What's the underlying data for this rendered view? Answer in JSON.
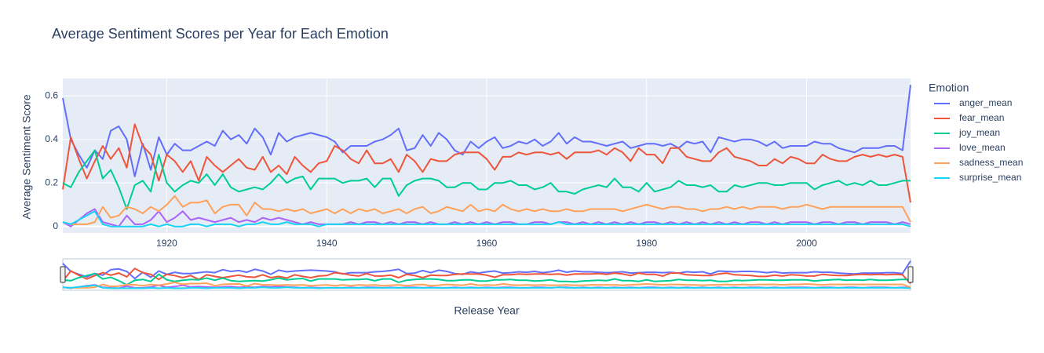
{
  "chart_data": {
    "type": "line",
    "title": "Average Sentiment Scores per Year for Each Emotion",
    "x_label": "Release Year",
    "y_label": "Average Sentiment Score",
    "legend_title": "Emotion",
    "x": [
      1907,
      1908,
      1909,
      1910,
      1911,
      1912,
      1913,
      1914,
      1915,
      1916,
      1917,
      1918,
      1919,
      1920,
      1921,
      1922,
      1923,
      1924,
      1925,
      1926,
      1927,
      1928,
      1929,
      1930,
      1931,
      1932,
      1933,
      1934,
      1935,
      1936,
      1937,
      1938,
      1939,
      1940,
      1941,
      1942,
      1943,
      1944,
      1945,
      1946,
      1947,
      1948,
      1949,
      1950,
      1951,
      1952,
      1953,
      1954,
      1955,
      1956,
      1957,
      1958,
      1959,
      1960,
      1961,
      1962,
      1963,
      1964,
      1965,
      1966,
      1967,
      1968,
      1969,
      1970,
      1971,
      1972,
      1973,
      1974,
      1975,
      1976,
      1977,
      1978,
      1979,
      1980,
      1981,
      1982,
      1983,
      1984,
      1985,
      1986,
      1987,
      1988,
      1989,
      1990,
      1991,
      1992,
      1993,
      1994,
      1995,
      1996,
      1997,
      1998,
      1999,
      2000,
      2001,
      2002,
      2003,
      2004,
      2005,
      2006,
      2007,
      2008,
      2009,
      2010,
      2011,
      2012,
      2013
    ],
    "series": [
      {
        "name": "anger_mean",
        "color": "#636efa",
        "values": [
          0.59,
          0.4,
          0.33,
          0.27,
          0.35,
          0.31,
          0.44,
          0.46,
          0.4,
          0.23,
          0.38,
          0.26,
          0.41,
          0.33,
          0.38,
          0.35,
          0.35,
          0.37,
          0.39,
          0.37,
          0.44,
          0.4,
          0.42,
          0.38,
          0.45,
          0.41,
          0.33,
          0.43,
          0.39,
          0.41,
          0.42,
          0.43,
          0.42,
          0.41,
          0.39,
          0.34,
          0.37,
          0.37,
          0.37,
          0.39,
          0.4,
          0.42,
          0.45,
          0.35,
          0.36,
          0.42,
          0.37,
          0.43,
          0.4,
          0.35,
          0.33,
          0.39,
          0.36,
          0.39,
          0.41,
          0.36,
          0.37,
          0.39,
          0.38,
          0.4,
          0.37,
          0.39,
          0.43,
          0.38,
          0.41,
          0.39,
          0.39,
          0.38,
          0.37,
          0.38,
          0.39,
          0.36,
          0.37,
          0.38,
          0.38,
          0.37,
          0.38,
          0.36,
          0.39,
          0.38,
          0.39,
          0.34,
          0.41,
          0.4,
          0.39,
          0.4,
          0.4,
          0.39,
          0.37,
          0.39,
          0.36,
          0.37,
          0.37,
          0.37,
          0.39,
          0.38,
          0.38,
          0.36,
          0.35,
          0.34,
          0.36,
          0.36,
          0.36,
          0.37,
          0.37,
          0.35,
          0.65
        ]
      },
      {
        "name": "fear_mean",
        "color": "#EF553B",
        "values": [
          0.17,
          0.41,
          0.31,
          0.22,
          0.3,
          0.37,
          0.31,
          0.36,
          0.27,
          0.47,
          0.37,
          0.33,
          0.21,
          0.33,
          0.3,
          0.25,
          0.3,
          0.21,
          0.32,
          0.28,
          0.25,
          0.28,
          0.31,
          0.27,
          0.26,
          0.32,
          0.25,
          0.28,
          0.24,
          0.32,
          0.28,
          0.25,
          0.29,
          0.3,
          0.37,
          0.35,
          0.31,
          0.29,
          0.35,
          0.29,
          0.29,
          0.31,
          0.25,
          0.33,
          0.3,
          0.25,
          0.31,
          0.3,
          0.3,
          0.33,
          0.34,
          0.34,
          0.34,
          0.31,
          0.26,
          0.32,
          0.32,
          0.34,
          0.33,
          0.34,
          0.34,
          0.33,
          0.34,
          0.31,
          0.34,
          0.34,
          0.34,
          0.35,
          0.33,
          0.36,
          0.34,
          0.3,
          0.36,
          0.33,
          0.33,
          0.29,
          0.36,
          0.36,
          0.32,
          0.31,
          0.3,
          0.3,
          0.34,
          0.36,
          0.32,
          0.31,
          0.3,
          0.28,
          0.28,
          0.31,
          0.29,
          0.32,
          0.31,
          0.29,
          0.29,
          0.33,
          0.31,
          0.3,
          0.3,
          0.32,
          0.33,
          0.32,
          0.33,
          0.32,
          0.33,
          0.32,
          0.11
        ]
      },
      {
        "name": "joy_mean",
        "color": "#00cc96",
        "values": [
          0.2,
          0.18,
          0.25,
          0.3,
          0.35,
          0.22,
          0.26,
          0.18,
          0.08,
          0.19,
          0.21,
          0.16,
          0.33,
          0.2,
          0.16,
          0.19,
          0.21,
          0.2,
          0.24,
          0.19,
          0.24,
          0.18,
          0.16,
          0.17,
          0.18,
          0.17,
          0.2,
          0.24,
          0.2,
          0.22,
          0.23,
          0.17,
          0.22,
          0.22,
          0.22,
          0.2,
          0.21,
          0.21,
          0.22,
          0.18,
          0.22,
          0.22,
          0.14,
          0.19,
          0.21,
          0.22,
          0.22,
          0.21,
          0.18,
          0.18,
          0.2,
          0.2,
          0.17,
          0.17,
          0.2,
          0.2,
          0.21,
          0.19,
          0.19,
          0.17,
          0.18,
          0.2,
          0.16,
          0.16,
          0.15,
          0.17,
          0.18,
          0.19,
          0.18,
          0.22,
          0.18,
          0.18,
          0.16,
          0.2,
          0.16,
          0.17,
          0.18,
          0.21,
          0.19,
          0.19,
          0.18,
          0.19,
          0.16,
          0.16,
          0.19,
          0.18,
          0.19,
          0.2,
          0.2,
          0.19,
          0.19,
          0.2,
          0.2,
          0.2,
          0.17,
          0.19,
          0.2,
          0.21,
          0.19,
          0.2,
          0.19,
          0.21,
          0.19,
          0.19,
          0.2,
          0.21,
          0.21
        ]
      },
      {
        "name": "love_mean",
        "color": "#ab63fa",
        "values": [
          0.02,
          0.0,
          0.03,
          0.06,
          0.08,
          0.02,
          0.01,
          0.0,
          0.05,
          0.01,
          0.01,
          0.03,
          0.07,
          0.02,
          0.04,
          0.07,
          0.03,
          0.04,
          0.03,
          0.02,
          0.03,
          0.04,
          0.02,
          0.03,
          0.02,
          0.04,
          0.03,
          0.04,
          0.03,
          0.02,
          0.01,
          0.02,
          0.01,
          0.01,
          0.01,
          0.01,
          0.02,
          0.01,
          0.02,
          0.02,
          0.01,
          0.02,
          0.01,
          0.02,
          0.02,
          0.01,
          0.02,
          0.01,
          0.01,
          0.02,
          0.01,
          0.02,
          0.01,
          0.02,
          0.01,
          0.02,
          0.02,
          0.01,
          0.01,
          0.02,
          0.02,
          0.01,
          0.02,
          0.02,
          0.01,
          0.02,
          0.01,
          0.02,
          0.01,
          0.02,
          0.01,
          0.02,
          0.01,
          0.02,
          0.02,
          0.01,
          0.02,
          0.01,
          0.02,
          0.01,
          0.02,
          0.01,
          0.02,
          0.01,
          0.02,
          0.01,
          0.02,
          0.02,
          0.01,
          0.02,
          0.01,
          0.02,
          0.02,
          0.02,
          0.01,
          0.02,
          0.02,
          0.01,
          0.02,
          0.02,
          0.01,
          0.02,
          0.02,
          0.02,
          0.01,
          0.02,
          0.01
        ]
      },
      {
        "name": "sadness_mean",
        "color": "#FFA15A",
        "values": [
          0.02,
          0.01,
          0.01,
          0.01,
          0.02,
          0.09,
          0.04,
          0.05,
          0.09,
          0.08,
          0.06,
          0.09,
          0.07,
          0.1,
          0.14,
          0.09,
          0.11,
          0.11,
          0.12,
          0.06,
          0.09,
          0.1,
          0.1,
          0.05,
          0.11,
          0.08,
          0.08,
          0.07,
          0.08,
          0.07,
          0.08,
          0.06,
          0.07,
          0.08,
          0.06,
          0.08,
          0.06,
          0.08,
          0.07,
          0.08,
          0.06,
          0.07,
          0.08,
          0.06,
          0.08,
          0.09,
          0.06,
          0.07,
          0.09,
          0.08,
          0.07,
          0.1,
          0.07,
          0.08,
          0.07,
          0.1,
          0.08,
          0.07,
          0.08,
          0.07,
          0.08,
          0.07,
          0.07,
          0.08,
          0.07,
          0.07,
          0.08,
          0.08,
          0.08,
          0.08,
          0.07,
          0.08,
          0.09,
          0.1,
          0.09,
          0.08,
          0.09,
          0.09,
          0.08,
          0.08,
          0.07,
          0.08,
          0.08,
          0.09,
          0.08,
          0.09,
          0.08,
          0.09,
          0.09,
          0.09,
          0.08,
          0.09,
          0.09,
          0.1,
          0.09,
          0.08,
          0.09,
          0.09,
          0.09,
          0.09,
          0.09,
          0.09,
          0.09,
          0.09,
          0.09,
          0.09,
          0.02
        ]
      },
      {
        "name": "surprise_mean",
        "color": "#19d3f3",
        "values": [
          0.02,
          0.01,
          0.03,
          0.05,
          0.07,
          0.01,
          0.0,
          0.0,
          0.0,
          0.0,
          0.0,
          0.01,
          0.0,
          0.01,
          0.0,
          0.0,
          0.01,
          0.01,
          0.0,
          0.01,
          0.01,
          0.01,
          0.0,
          0.01,
          0.01,
          0.02,
          0.01,
          0.01,
          0.02,
          0.01,
          0.01,
          0.01,
          0.0,
          0.01,
          0.01,
          0.01,
          0.01,
          0.01,
          0.01,
          0.01,
          0.01,
          0.01,
          0.01,
          0.01,
          0.01,
          0.01,
          0.01,
          0.01,
          0.01,
          0.01,
          0.01,
          0.01,
          0.01,
          0.01,
          0.01,
          0.01,
          0.01,
          0.01,
          0.01,
          0.01,
          0.01,
          0.01,
          0.02,
          0.01,
          0.01,
          0.01,
          0.01,
          0.01,
          0.01,
          0.01,
          0.01,
          0.01,
          0.01,
          0.01,
          0.01,
          0.01,
          0.01,
          0.01,
          0.01,
          0.01,
          0.01,
          0.01,
          0.01,
          0.01,
          0.01,
          0.01,
          0.01,
          0.01,
          0.01,
          0.01,
          0.01,
          0.01,
          0.01,
          0.01,
          0.01,
          0.01,
          0.01,
          0.01,
          0.01,
          0.01,
          0.01,
          0.01,
          0.01,
          0.01,
          0.01,
          0.01,
          0.0
        ]
      }
    ],
    "xlim": [
      1907,
      2013
    ],
    "xticks": [
      1920,
      1940,
      1960,
      1980,
      2000
    ],
    "ylim": [
      -0.03,
      0.68
    ],
    "yticks": [
      0,
      0.2,
      0.4,
      0.6
    ],
    "grid": true,
    "legend": "right",
    "range_slider": true
  }
}
